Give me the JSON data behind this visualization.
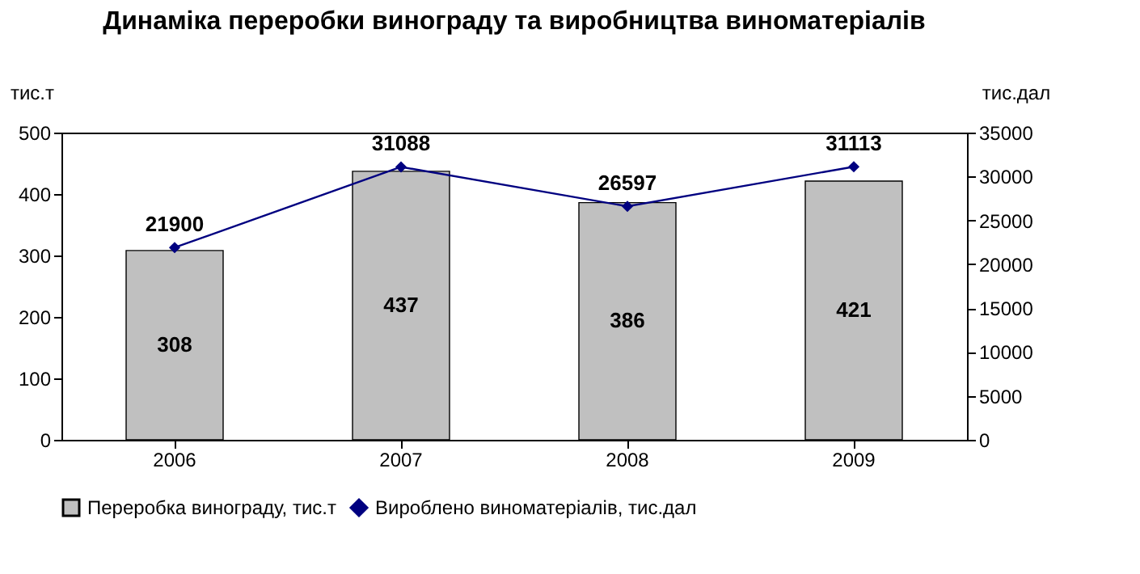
{
  "chart_data": {
    "type": "bar",
    "title": "Динаміка переробки винограду та виробництва виноматеріалів",
    "categories": [
      "2006",
      "2007",
      "2008",
      "2009"
    ],
    "series": [
      {
        "name": "Переробка винограду, тис.т",
        "color": "#c0c0c0",
        "values": [
          308,
          437,
          386,
          421
        ]
      },
      {
        "name": "Вироблено виноматеріалів, тис.дал",
        "type": "line",
        "axis": "y2",
        "color": "#000080",
        "marker": "diamond",
        "values": [
          21900,
          31088,
          26597,
          31113
        ]
      }
    ],
    "ylabel": "тис.т",
    "y2label": "тис.дал",
    "ylim": [
      0,
      500
    ],
    "yticks": [
      0,
      100,
      200,
      300,
      400,
      500
    ],
    "y2lim": [
      0,
      35000
    ],
    "y2ticks": [
      0,
      5000,
      10000,
      15000,
      20000,
      25000,
      30000,
      35000
    ],
    "data_labels": true,
    "grid": false,
    "legend": "bottom"
  }
}
